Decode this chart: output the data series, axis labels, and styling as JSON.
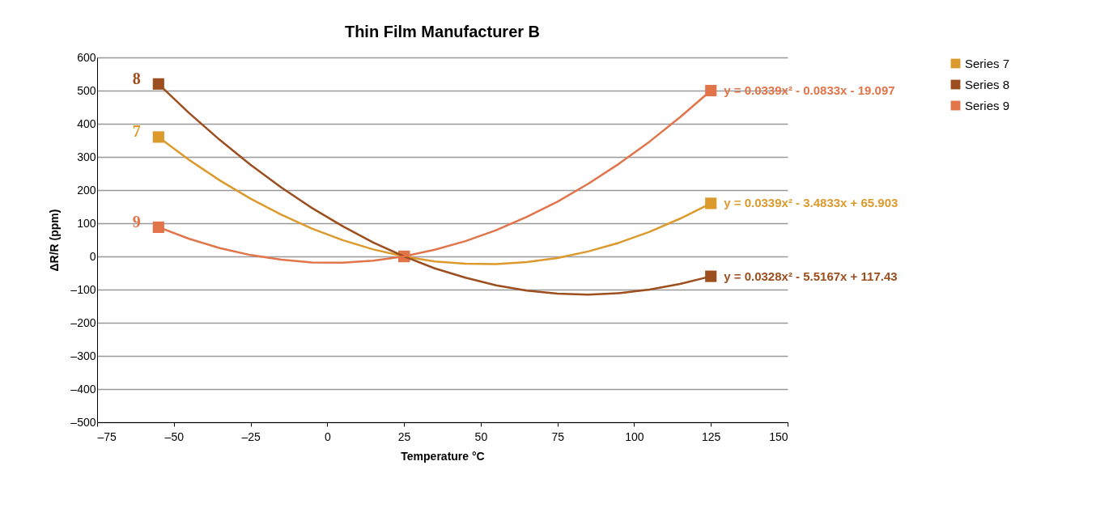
{
  "chart_data": {
    "type": "scatter",
    "title": "Thin Film Manufacturer B",
    "xlabel": "Temperature °C",
    "ylabel": "ΔR/R (ppm)",
    "xlim": [
      -75,
      150
    ],
    "xticks": [
      {
        "value": -75,
        "label": "–75"
      },
      {
        "value": -50,
        "label": "–50"
      },
      {
        "value": -25,
        "label": "–25"
      },
      0,
      25,
      50,
      75,
      100,
      125,
      150
    ],
    "ylim": [
      -500,
      600
    ],
    "yticks": [
      {
        "value": -500,
        "label": "–500"
      },
      {
        "value": -400,
        "label": "–400"
      },
      {
        "value": -300,
        "label": "–300"
      },
      {
        "value": -200,
        "label": "–200"
      },
      {
        "value": -100,
        "label": "–100"
      },
      0,
      100,
      200,
      300,
      400,
      500,
      600
    ],
    "grid": "y",
    "legend": "right",
    "series": [
      {
        "name": "Series 7",
        "marker": "square",
        "color": "#dc9a2c",
        "x": [
          -55,
          25,
          125
        ],
        "values": [
          360,
          0,
          160
        ]
      },
      {
        "name": "Series 8",
        "marker": "square",
        "color": "#9c4e1e",
        "x": [
          -55,
          25,
          125
        ],
        "values": [
          520,
          0,
          -60
        ]
      },
      {
        "name": "Series 9",
        "marker": "square",
        "color": "#e2744a",
        "x": [
          -55,
          25,
          125
        ],
        "values": [
          88,
          0,
          500
        ]
      },
      {
        "type": "line",
        "marker": "none",
        "color": "#dc9a2c",
        "x": [
          -55,
          -45,
          -35,
          -25,
          -15,
          -5,
          5,
          15,
          25,
          35,
          45,
          55,
          65,
          75,
          85,
          95,
          105,
          115,
          125
        ],
        "values": [
          360,
          291,
          229,
          174,
          126,
          84,
          49,
          21,
          0,
          -15,
          -22,
          -23,
          -17,
          -5,
          15,
          41,
          74,
          114,
          160
        ]
      },
      {
        "type": "line",
        "marker": "none",
        "color": "#9c4e1e",
        "x": [
          -55,
          -45,
          -35,
          -25,
          -15,
          -5,
          5,
          15,
          25,
          35,
          45,
          55,
          65,
          75,
          85,
          95,
          105,
          115,
          125
        ],
        "values": [
          520,
          432,
          351,
          276,
          208,
          146,
          91,
          42,
          0,
          -36,
          -64,
          -87,
          -103,
          -112,
          -115,
          -111,
          -100,
          -83,
          -60
        ]
      },
      {
        "type": "line",
        "marker": "none",
        "color": "#e2744a",
        "x": [
          -55,
          -45,
          -35,
          -25,
          -15,
          -5,
          5,
          15,
          25,
          35,
          45,
          55,
          65,
          75,
          85,
          95,
          105,
          115,
          125
        ],
        "values": [
          88,
          53,
          25,
          4,
          -10,
          -18,
          -19,
          -13,
          0,
          20,
          46,
          79,
          119,
          165,
          219,
          279,
          346,
          420,
          500
        ]
      }
    ],
    "annotations": [
      "7",
      "8",
      "9",
      "y = 0.0339x² - 3.4833x + 65.903",
      "y = 0.0328x² - 5.5167x + 117.43",
      "y = 0.0339x² - 0.0833x - 19.097"
    ]
  }
}
